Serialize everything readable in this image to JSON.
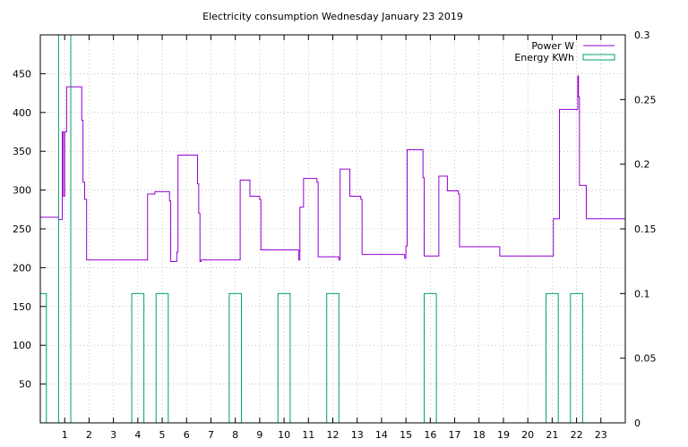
{
  "chart_data": {
    "type": "line",
    "title": "Electricity consumption Wednesday January 23 2019",
    "xlabel": "",
    "ylabel": "",
    "xlim": [
      0,
      24
    ],
    "ylim": [
      0,
      500
    ],
    "y2lim": [
      0,
      0.3
    ],
    "x_ticks": [
      1,
      2,
      3,
      4,
      5,
      6,
      7,
      8,
      9,
      10,
      11,
      12,
      13,
      14,
      15,
      16,
      17,
      18,
      19,
      20,
      21,
      22,
      23
    ],
    "y_ticks": [
      50,
      100,
      150,
      200,
      250,
      300,
      350,
      400,
      450
    ],
    "y2_ticks": [
      0,
      0.05,
      0.1,
      0.15,
      0.2,
      0.25,
      0.3
    ],
    "grid": true,
    "legend_position": "top-right",
    "colors": {
      "power": "#9400d3",
      "energy": "#009e73",
      "grid": "#a0a0a0"
    },
    "series": [
      {
        "name": "Power W",
        "axis": "left",
        "style": "line",
        "points": [
          [
            0,
            265
          ],
          [
            0.75,
            265
          ],
          [
            0.75,
            262
          ],
          [
            0.9,
            262
          ],
          [
            0.9,
            375
          ],
          [
            0.95,
            375
          ],
          [
            0.95,
            292
          ],
          [
            1.0,
            292
          ],
          [
            1.0,
            375
          ],
          [
            1.08,
            375
          ],
          [
            1.08,
            433
          ],
          [
            1.7,
            433
          ],
          [
            1.7,
            390
          ],
          [
            1.75,
            390
          ],
          [
            1.75,
            310
          ],
          [
            1.82,
            310
          ],
          [
            1.82,
            288
          ],
          [
            1.9,
            288
          ],
          [
            1.9,
            210
          ],
          [
            4.4,
            210
          ],
          [
            4.4,
            295
          ],
          [
            4.7,
            295
          ],
          [
            4.7,
            298
          ],
          [
            5.3,
            298
          ],
          [
            5.3,
            286
          ],
          [
            5.35,
            286
          ],
          [
            5.35,
            208
          ],
          [
            5.6,
            208
          ],
          [
            5.6,
            220
          ],
          [
            5.65,
            220
          ],
          [
            5.65,
            345
          ],
          [
            6.45,
            345
          ],
          [
            6.45,
            308
          ],
          [
            6.5,
            308
          ],
          [
            6.5,
            270
          ],
          [
            6.55,
            270
          ],
          [
            6.55,
            208
          ],
          [
            6.6,
            208
          ],
          [
            6.6,
            210
          ],
          [
            8.2,
            210
          ],
          [
            8.2,
            313
          ],
          [
            8.6,
            313
          ],
          [
            8.6,
            292
          ],
          [
            9.0,
            292
          ],
          [
            9.0,
            288
          ],
          [
            9.05,
            288
          ],
          [
            9.05,
            223
          ],
          [
            10.6,
            223
          ],
          [
            10.6,
            210
          ],
          [
            10.65,
            210
          ],
          [
            10.65,
            278
          ],
          [
            10.8,
            278
          ],
          [
            10.8,
            315
          ],
          [
            11.35,
            315
          ],
          [
            11.35,
            310
          ],
          [
            11.4,
            310
          ],
          [
            11.4,
            214
          ],
          [
            12.25,
            214
          ],
          [
            12.25,
            210
          ],
          [
            12.3,
            210
          ],
          [
            12.3,
            327
          ],
          [
            12.7,
            327
          ],
          [
            12.7,
            292
          ],
          [
            13.15,
            292
          ],
          [
            13.15,
            288
          ],
          [
            13.2,
            288
          ],
          [
            13.2,
            217
          ],
          [
            14.95,
            217
          ],
          [
            14.95,
            212
          ],
          [
            15.0,
            212
          ],
          [
            15.0,
            228
          ],
          [
            15.05,
            228
          ],
          [
            15.05,
            352
          ],
          [
            15.7,
            352
          ],
          [
            15.7,
            316
          ],
          [
            15.75,
            316
          ],
          [
            15.75,
            215
          ],
          [
            16.35,
            215
          ],
          [
            16.35,
            318
          ],
          [
            16.7,
            318
          ],
          [
            16.7,
            299
          ],
          [
            17.15,
            299
          ],
          [
            17.15,
            295
          ],
          [
            17.2,
            295
          ],
          [
            17.2,
            227
          ],
          [
            18.85,
            227
          ],
          [
            18.85,
            215
          ],
          [
            21.05,
            215
          ],
          [
            21.05,
            263
          ],
          [
            21.3,
            263
          ],
          [
            21.3,
            404
          ],
          [
            22.05,
            404
          ],
          [
            22.05,
            447
          ],
          [
            22.08,
            447
          ],
          [
            22.08,
            420
          ],
          [
            22.12,
            420
          ],
          [
            22.12,
            306
          ],
          [
            22.4,
            306
          ],
          [
            22.4,
            263
          ],
          [
            24,
            263
          ]
        ]
      },
      {
        "name": "Energy KWh",
        "axis": "right",
        "style": "steps",
        "points": [
          [
            0,
            0.1
          ],
          [
            0.25,
            0.1
          ],
          [
            0.25,
            0
          ],
          [
            0.75,
            0
          ],
          [
            0.75,
            0.3
          ],
          [
            1.25,
            0.3
          ],
          [
            1.25,
            0
          ],
          [
            3.75,
            0
          ],
          [
            3.75,
            0.1
          ],
          [
            4.25,
            0.1
          ],
          [
            4.25,
            0
          ],
          [
            4.75,
            0
          ],
          [
            4.75,
            0.1
          ],
          [
            5.25,
            0.1
          ],
          [
            5.25,
            0
          ],
          [
            7.75,
            0
          ],
          [
            7.75,
            0.1
          ],
          [
            8.25,
            0.1
          ],
          [
            8.25,
            0
          ],
          [
            9.75,
            0
          ],
          [
            9.75,
            0.1
          ],
          [
            10.25,
            0.1
          ],
          [
            10.25,
            0
          ],
          [
            11.75,
            0
          ],
          [
            11.75,
            0.1
          ],
          [
            12.25,
            0.1
          ],
          [
            12.25,
            0
          ],
          [
            15.75,
            0
          ],
          [
            15.75,
            0.1
          ],
          [
            16.25,
            0.1
          ],
          [
            16.25,
            0
          ],
          [
            20.75,
            0
          ],
          [
            20.75,
            0.1
          ],
          [
            21.25,
            0.1
          ],
          [
            21.25,
            0
          ],
          [
            21.75,
            0
          ],
          [
            21.75,
            0.1
          ],
          [
            22.25,
            0.1
          ],
          [
            22.25,
            0
          ]
        ]
      }
    ]
  }
}
